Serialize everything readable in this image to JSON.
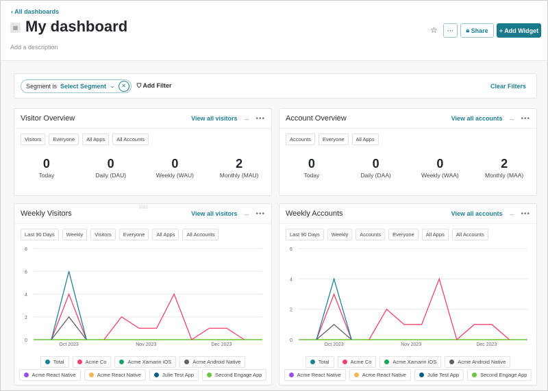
{
  "header": {
    "back": "All dashboards",
    "title": "My dashboard",
    "description": "Add a description",
    "more": "···",
    "share": "Share",
    "add_widget": "+ Add Widget"
  },
  "filter": {
    "segment_label": "Segment is",
    "segment_value": "Select Segment",
    "add_filter": "Add Filter",
    "clear": "Clear Filters"
  },
  "visitor_overview": {
    "title": "Visitor Overview",
    "link": "View all visitors",
    "chips": [
      "Visitors",
      "Everyone",
      "All Apps",
      "All Accounts"
    ],
    "stats": [
      {
        "value": "0",
        "label": "Today"
      },
      {
        "value": "0",
        "label": "Daily (DAU)"
      },
      {
        "value": "0",
        "label": "Weekly (WAU)"
      },
      {
        "value": "2",
        "label": "Monthly (MAU)"
      }
    ]
  },
  "account_overview": {
    "title": "Account Overview",
    "link": "View all accounts",
    "chips": [
      "Accounts",
      "Everyone",
      "All Apps"
    ],
    "stats": [
      {
        "value": "0",
        "label": "Today"
      },
      {
        "value": "0",
        "label": "Daily (DAA)"
      },
      {
        "value": "0",
        "label": "Weekly (WAA)"
      },
      {
        "value": "2",
        "label": "Monthly (MAA)"
      }
    ]
  },
  "weekly_visitors": {
    "title": "Weekly Visitors",
    "link": "View all visitors",
    "chips": [
      "Last 90 Days",
      "Weekly",
      "Visitors",
      "Everyone",
      "All Apps",
      "All Accounts"
    ]
  },
  "weekly_accounts": {
    "title": "Weekly Accounts",
    "link": "View all accounts",
    "chips": [
      "Last 90 Days",
      "Weekly",
      "Accounts",
      "Everyone",
      "All Apps",
      "All Accounts"
    ]
  },
  "legend": [
    {
      "name": "Total",
      "color": "#1f7f94"
    },
    {
      "name": "Acme Co",
      "color": "#f0426a"
    },
    {
      "name": "Acme Xamarin iOS",
      "color": "#1aa260"
    },
    {
      "name": "Acme Android Native",
      "color": "#5f6066"
    },
    {
      "name": "Acme React Native",
      "color": "#9b51e0"
    },
    {
      "name": "Acme React Native",
      "color": "#f2b75a"
    },
    {
      "name": "Julie Test App",
      "color": "#0b5c8a"
    },
    {
      "name": "Second Engage App",
      "color": "#6cc644"
    }
  ],
  "chart_data": [
    {
      "type": "line",
      "title": "Weekly Visitors",
      "ylim": [
        0,
        8
      ],
      "yticks": [
        0,
        2,
        4,
        6,
        8
      ],
      "x_count": 12,
      "month_labels": [
        {
          "label": "Oct 2023",
          "index": 1
        },
        {
          "label": "Nov 2023",
          "index": 5.4
        },
        {
          "label": "Dec 2023",
          "index": 9.7
        }
      ],
      "series": [
        {
          "name": "Second Engage App",
          "color": "#6cc644",
          "values": [
            0,
            0,
            0,
            0,
            0,
            0,
            0,
            0,
            0,
            0,
            0,
            0
          ]
        },
        {
          "name": "Acme Android Native",
          "color": "#5f6066",
          "values": [
            0,
            2,
            0,
            null,
            null,
            null,
            null,
            null,
            null,
            null,
            null,
            null
          ]
        },
        {
          "name": "Acme Co",
          "color": "#f0426a",
          "values": [
            0,
            4,
            0,
            0,
            2,
            1,
            1,
            4,
            0,
            1,
            1,
            0
          ],
          "gaps_after": [
            2
          ]
        },
        {
          "name": "Total",
          "color": "#1f7f94",
          "values": [
            0,
            6,
            0,
            null,
            null,
            null,
            null,
            null,
            null,
            null,
            null,
            null
          ]
        }
      ]
    },
    {
      "type": "line",
      "title": "Weekly Accounts",
      "ylim": [
        0,
        6
      ],
      "yticks": [
        0,
        2,
        4,
        6
      ],
      "x_count": 12,
      "month_labels": [
        {
          "label": "Oct 2023",
          "index": 1
        },
        {
          "label": "Nov 2023",
          "index": 5.4
        },
        {
          "label": "Dec 2023",
          "index": 9.7
        }
      ],
      "series": [
        {
          "name": "Second Engage App",
          "color": "#6cc644",
          "values": [
            0,
            0,
            0,
            0,
            0,
            0,
            0,
            0,
            0,
            0,
            0,
            0
          ]
        },
        {
          "name": "Acme Android Native",
          "color": "#5f6066",
          "values": [
            0,
            1,
            0,
            null,
            null,
            null,
            null,
            null,
            null,
            null,
            null,
            null
          ]
        },
        {
          "name": "Acme Co",
          "color": "#f0426a",
          "values": [
            0,
            3,
            0,
            0,
            2,
            1,
            1,
            4,
            0,
            1,
            1,
            0
          ],
          "gaps_after": [
            2
          ]
        },
        {
          "name": "Total",
          "color": "#1f7f94",
          "values": [
            0,
            4,
            0,
            null,
            null,
            null,
            null,
            null,
            null,
            null,
            null,
            null
          ]
        }
      ]
    }
  ]
}
